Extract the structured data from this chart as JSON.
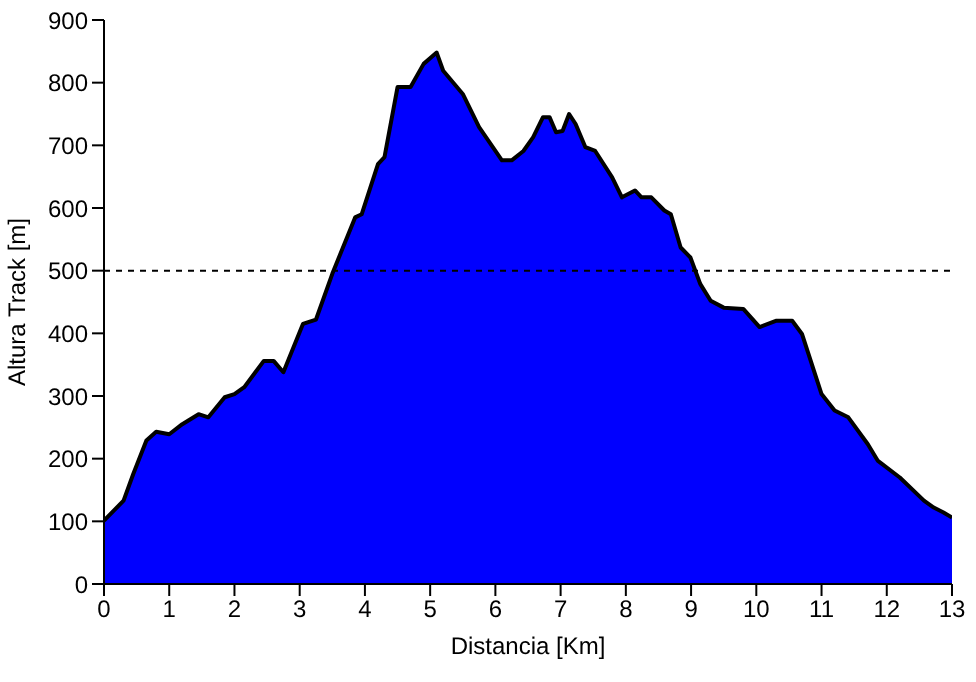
{
  "chart_data": {
    "type": "area",
    "xlabel": "Distancia [Km]",
    "ylabel": "Altura Track [m]",
    "x": [
      0,
      0.15,
      0.3,
      0.45,
      0.65,
      0.8,
      1.0,
      1.2,
      1.45,
      1.6,
      1.85,
      2.0,
      2.15,
      2.45,
      2.6,
      2.75,
      3.05,
      3.25,
      3.5,
      3.85,
      3.95,
      4.2,
      4.3,
      4.5,
      4.7,
      4.9,
      5.1,
      5.2,
      5.5,
      5.75,
      6.1,
      6.25,
      6.43,
      6.58,
      6.73,
      6.83,
      6.93,
      7.03,
      7.13,
      7.23,
      7.38,
      7.53,
      7.79,
      7.94,
      8.14,
      8.24,
      8.39,
      8.59,
      8.69,
      8.84,
      8.99,
      9.14,
      9.3,
      9.5,
      9.8,
      10.05,
      10.3,
      10.55,
      10.7,
      11.0,
      11.2,
      11.41,
      11.71,
      11.86,
      12.2,
      12.57,
      12.72,
      12.87,
      13.0
    ],
    "series": [
      {
        "color": "#0000ff",
        "values": [
          101,
          117,
          133,
          176,
          229,
          243,
          239,
          255,
          271,
          266,
          298,
          303,
          314,
          356,
          356,
          338,
          415,
          422,
          495,
          585,
          590,
          670,
          681,
          793,
          793,
          830,
          848,
          819,
          782,
          729,
          676,
          676,
          691,
          713,
          745,
          745,
          721,
          723,
          750,
          734,
          697,
          691,
          649,
          617,
          628,
          617,
          617,
          596,
          590,
          537,
          521,
          479,
          452,
          441,
          439,
          410,
          420,
          420,
          399,
          303,
          277,
          266,
          223,
          197,
          170,
          133,
          122,
          114,
          106
        ]
      }
    ],
    "xlim": [
      0,
      13
    ],
    "xticks": [
      0,
      1,
      2,
      3,
      4,
      5,
      6,
      7,
      8,
      9,
      10,
      11,
      12,
      13
    ],
    "ylim": [
      0,
      900
    ],
    "yticks": [
      0,
      100,
      200,
      300,
      400,
      500,
      600,
      700,
      800,
      900
    ],
    "ref_lines": [
      {
        "axis": "y",
        "value": 500,
        "color": "#000000",
        "line_style": "dashed"
      }
    ],
    "grid": false,
    "legend": false
  }
}
